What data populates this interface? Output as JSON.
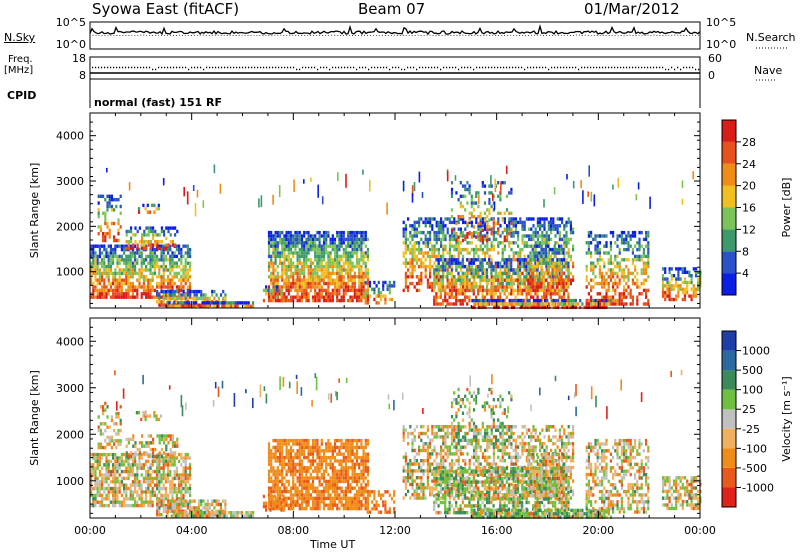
{
  "header": {
    "station": "Syowa East (fitACF)",
    "beam": "Beam 07",
    "date": "01/Mar/2012"
  },
  "strip_labels": {
    "nsky": "N.Sky",
    "freq_line1": "Freq.",
    "freq_line2": "[MHz]",
    "cpid": "CPID",
    "nsearch": "N.Search",
    "nave": "Nave",
    "mode": "normal (fast) 151 RF"
  },
  "chart_data": [
    {
      "type": "line",
      "name": "noise-strip",
      "left_ticks": [
        "10^5",
        "10^0"
      ],
      "right_ticks": [
        "10^5",
        "10^0"
      ]
    },
    {
      "type": "scatter",
      "name": "frequency-nave-strip",
      "left_ticks": [
        "18",
        "8"
      ],
      "right_ticks": [
        "60",
        "0"
      ]
    },
    {
      "type": "heatmap",
      "name": "power-panel",
      "ylabel": "Slant Range [km]",
      "ylim": [
        200,
        4500
      ],
      "yticks": [
        1000,
        2000,
        3000,
        4000
      ],
      "xlim": [
        0,
        24
      ],
      "colorbar_label": "Power [dB]",
      "colorbar_ticks": [
        "4",
        "8",
        "12",
        "16",
        "20",
        "24",
        "28"
      ],
      "colorbar_colors": [
        "#0a1ee6",
        "#2a52c8",
        "#3c9a6a",
        "#7cc45a",
        "#f0c020",
        "#f08c18",
        "#e8501c",
        "#d81e18"
      ]
    },
    {
      "type": "heatmap",
      "name": "velocity-panel",
      "ylabel": "Slant Range [km]",
      "ylim": [
        200,
        4500
      ],
      "yticks": [
        1000,
        2000,
        3000,
        4000
      ],
      "xlim": [
        0,
        24
      ],
      "xlabel": "Time UT",
      "xticks": [
        "00:00",
        "04:00",
        "08:00",
        "12:00",
        "16:00",
        "20:00",
        "00:00"
      ],
      "colorbar_label": "Velocity [m s⁻¹]",
      "colorbar_ticks": [
        "1000",
        "500",
        "100",
        "25",
        "-25",
        "-100",
        "-500",
        "-1000"
      ],
      "colorbar_colors": [
        "#1f3ea8",
        "#2a6aa0",
        "#3a8a5a",
        "#70c040",
        "#c0c0c0",
        "#f0b060",
        "#f08c18",
        "#e85a1c",
        "#e0221c"
      ]
    }
  ]
}
